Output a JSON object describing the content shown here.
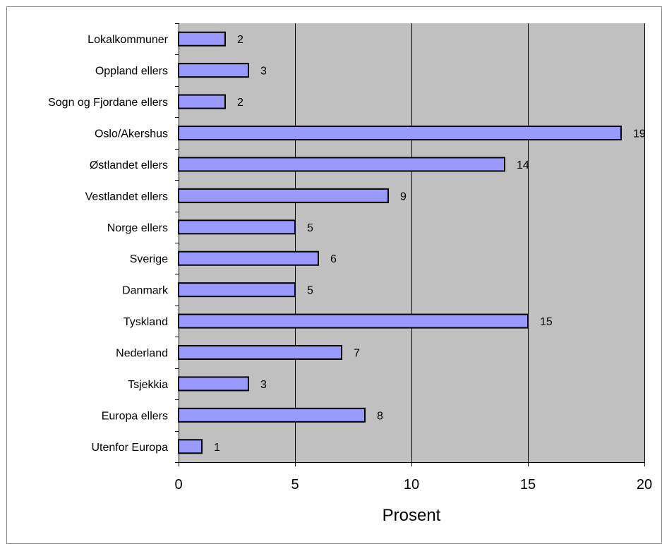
{
  "colors": {
    "plot_background": "#c0c0c0",
    "bar_fill": "#9999ff",
    "bar_stroke": "#000000",
    "gridline": "#000000",
    "frame": "#888888"
  },
  "chart_data": {
    "type": "bar",
    "orientation": "horizontal",
    "title": "",
    "xlabel": "Prosent",
    "ylabel": "",
    "xlim": [
      0,
      20
    ],
    "x_ticks": [
      0,
      5,
      10,
      15,
      20
    ],
    "grid": true,
    "legend": "none",
    "categories": [
      "Lokalkommuner",
      "Oppland ellers",
      "Sogn og Fjordane ellers",
      "Oslo/Akershus",
      "Østlandet ellers",
      "Vestlandet ellers",
      "Norge ellers",
      "Sverige",
      "Danmark",
      "Tyskland",
      "Nederland",
      "Tsjekkia",
      "Europa ellers",
      "Utenfor Europa"
    ],
    "values": [
      2,
      3,
      2,
      19,
      14,
      9,
      5,
      6,
      5,
      15,
      7,
      3,
      8,
      1
    ]
  }
}
